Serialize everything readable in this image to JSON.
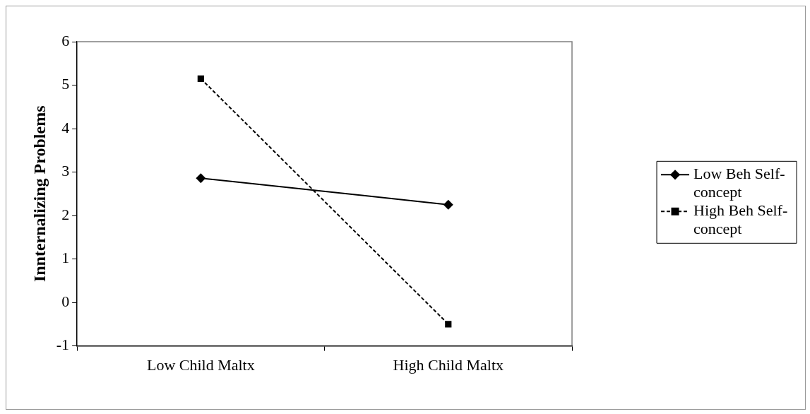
{
  "chart_data": {
    "type": "line",
    "ylabel": "Innternalizing Problems",
    "categories": [
      "Low Child Maltx",
      "High Child Maltx"
    ],
    "series": [
      {
        "name": "Low Beh Self-concept",
        "color": "#000000",
        "values": [
          2.86,
          2.25
        ],
        "marker": "diamond",
        "line_style": "solid"
      },
      {
        "name": "High Beh Self-concept",
        "color": "#000000",
        "values": [
          5.15,
          -0.5
        ],
        "marker": "square",
        "line_style": "dashed"
      }
    ],
    "ylim": [
      -1,
      6
    ],
    "yticks": [
      -1,
      0,
      1,
      2,
      3,
      4,
      5,
      6
    ],
    "grid": false,
    "legend": "right"
  }
}
